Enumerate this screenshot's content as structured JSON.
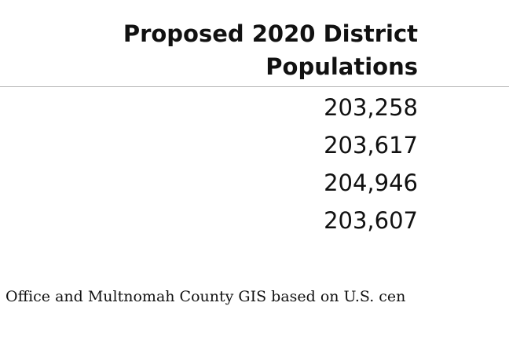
{
  "table": {
    "header_line1": "Proposed 2020 District",
    "header_line2": "Populations",
    "populations": [
      "203,258",
      "203,617",
      "204,946",
      "203,607"
    ]
  },
  "source_note": "'s Office and Multnomah County GIS based on U.S. cen"
}
